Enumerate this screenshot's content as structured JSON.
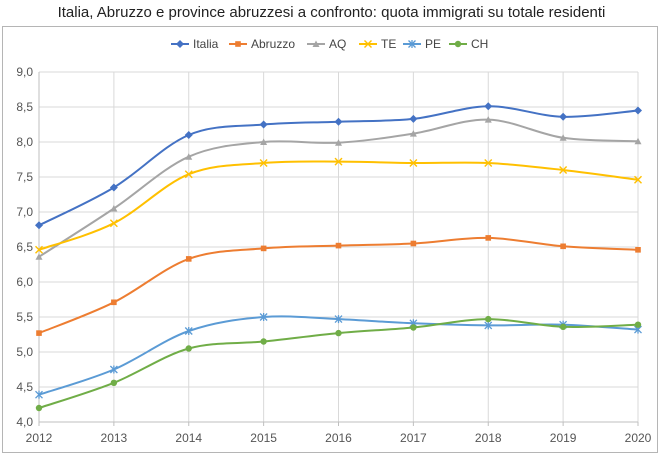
{
  "chart_data": {
    "type": "line",
    "title": "Italia, Abruzzo e province abruzzesi a confronto: quota immigrati su totale residenti",
    "xlabel": "",
    "ylabel": "",
    "x": [
      "2012",
      "2013",
      "2014",
      "2015",
      "2016",
      "2017",
      "2018",
      "2019",
      "2020"
    ],
    "ylim": [
      4.0,
      9.0
    ],
    "yticks": [
      "4,0",
      "4,5",
      "5,0",
      "5,5",
      "6,0",
      "6,5",
      "7,0",
      "7,5",
      "8,0",
      "8,5",
      "9,0"
    ],
    "legend_position": "top-center",
    "series": [
      {
        "name": "Italia",
        "color": "#4472c4",
        "marker": "diamond",
        "values": [
          6.81,
          7.35,
          8.1,
          8.25,
          8.29,
          8.33,
          8.51,
          8.36,
          8.45
        ]
      },
      {
        "name": "Abruzzo",
        "color": "#ed7d31",
        "marker": "square",
        "values": [
          5.27,
          5.71,
          6.33,
          6.48,
          6.52,
          6.55,
          6.63,
          6.51,
          6.46
        ]
      },
      {
        "name": "AQ",
        "color": "#a5a5a5",
        "marker": "triangle",
        "values": [
          6.36,
          7.05,
          7.79,
          8.0,
          7.99,
          8.12,
          8.32,
          8.06,
          8.01
        ]
      },
      {
        "name": "TE",
        "color": "#ffc000",
        "marker": "x",
        "values": [
          6.46,
          6.84,
          7.54,
          7.7,
          7.72,
          7.7,
          7.7,
          7.6,
          7.46
        ]
      },
      {
        "name": "PE",
        "color": "#5b9bd5",
        "marker": "star",
        "values": [
          4.39,
          4.75,
          5.3,
          5.5,
          5.47,
          5.41,
          5.38,
          5.39,
          5.32
        ]
      },
      {
        "name": "CH",
        "color": "#70ad47",
        "marker": "circle",
        "values": [
          4.2,
          4.56,
          5.05,
          5.15,
          5.27,
          5.35,
          5.47,
          5.36,
          5.39
        ]
      }
    ]
  }
}
